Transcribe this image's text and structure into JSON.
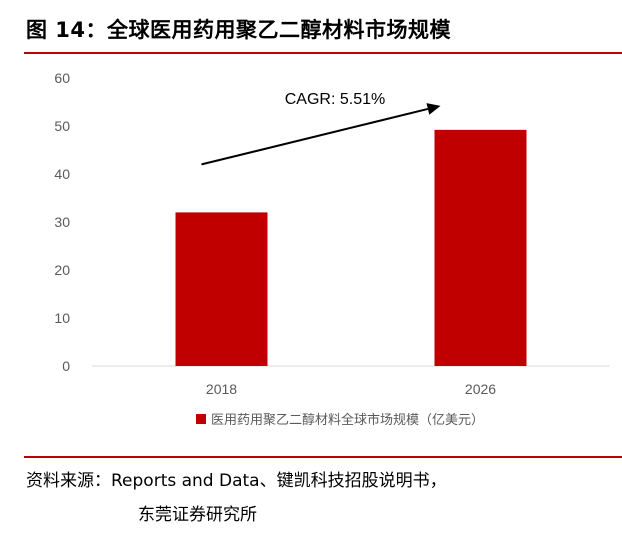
{
  "figure": {
    "title": "图 14：全球医用药用聚乙二醇材料市场规模",
    "source_line1": "资料来源：Reports and Data、键凯科技招股说明书，",
    "source_line2": "东莞证券研究所"
  },
  "colors": {
    "accent": "#c00000",
    "bar": "#c00000",
    "axis": "#d9d9d9",
    "tick_text": "#595959"
  },
  "chart_data": {
    "type": "bar",
    "categories": [
      "2018",
      "2026"
    ],
    "series": [
      {
        "name": "医用药用聚乙二醇材料全球市场规模（亿美元）",
        "values": [
          32,
          49.2
        ]
      }
    ],
    "ylim": [
      0,
      60
    ],
    "yticks": [
      "0",
      "10",
      "20",
      "30",
      "40",
      "50",
      "60"
    ],
    "grid": false,
    "legend_position": "bottom",
    "annotation": "CAGR: 5.51%"
  }
}
